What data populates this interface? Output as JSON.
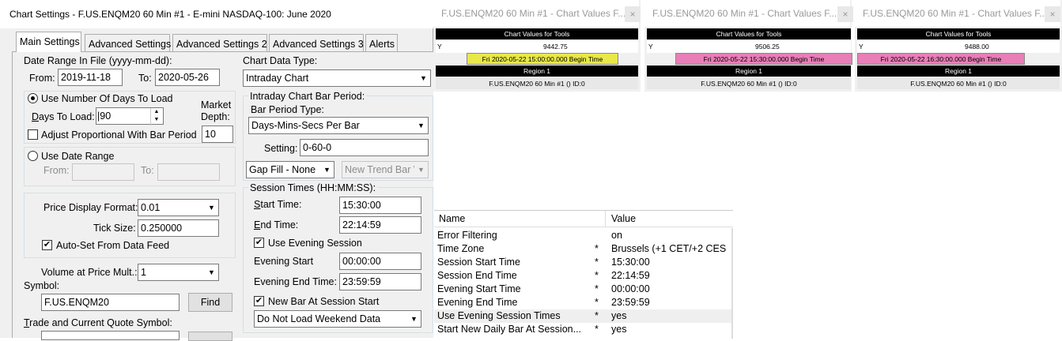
{
  "dialog": {
    "title": "Chart Settings - F.US.ENQM20  60 Min   #1 - E-mini NASDAQ-100: June 2020",
    "tabs": [
      "Main Settings",
      "Advanced Settings",
      "Advanced Settings 2",
      "Advanced Settings 3",
      "Alerts"
    ],
    "date_range_label": "Date Range In File (yyyy-mm-dd):",
    "from_label": "From:",
    "from_value": "2019-11-18",
    "to_label": "To:",
    "to_value": "2020-05-26",
    "use_days_label": "Use Number Of Days To Load",
    "days_to_load_label": "Days To Load:",
    "days_to_load_value": "90",
    "market_depth_label_1": "Market",
    "market_depth_label_2": "Depth:",
    "market_depth_value": "10",
    "adjust_label": "Adjust Proportional With Bar Period",
    "use_date_range_label": "Use Date Range",
    "dr_from_label": "From:",
    "dr_to_label": "To:",
    "price_format_label": "Price Display Format:",
    "price_format_value": "0.01",
    "tick_size_label": "Tick Size:",
    "tick_size_value": "0.250000",
    "auto_set_label": "Auto-Set From Data Feed",
    "volume_mult_label": "Volume at Price Mult.:",
    "volume_mult_value": "1",
    "symbol_label": "Symbol:",
    "symbol_value": "F.US.ENQM20",
    "find_label": "Find",
    "trade_quote_label": "Trade and Current Quote Symbol:",
    "chart_data_type_label": "Chart Data Type:",
    "chart_data_type_value": "Intraday Chart",
    "intraday_group_label": "Intraday Chart Bar Period:",
    "bar_period_type_label": "Bar Period Type:",
    "bar_period_type_value": "Days-Mins-Secs Per Bar",
    "setting_label": "Setting:",
    "setting_value": "0-60-0",
    "gap_fill_value": "Gap Fill - None",
    "new_trend_value": "New Trend Bar W",
    "session_group_label": "Session Times (HH:MM:SS):",
    "start_time_label": "Start Time:",
    "start_time_value": "15:30:00",
    "end_time_label": "End Time:",
    "end_time_value": "22:14:59",
    "use_evening_label": "Use Evening Session",
    "evening_start_label": "Evening Start",
    "evening_start_value": "00:00:00",
    "evening_end_label": "Evening End Time:",
    "evening_end_value": "23:59:59",
    "new_bar_label": "New Bar At Session Start",
    "weekend_value": "Do Not Load Weekend Data"
  },
  "chart_values_windows": [
    {
      "title": "F.US.ENQM20  60 Min   #1 - Chart Values F...",
      "header": "Chart Values for Tools",
      "y_label": "Y",
      "y_value": "9442.75",
      "time_text": "Fri 2020-05-22  15:00:00.000 Begin Time",
      "time_color": "#e8e84a",
      "region": "Region 1",
      "footer": "F.US.ENQM20  60 Min  #1 ()  ID:0"
    },
    {
      "title": "F.US.ENQM20  60 Min   #1 - Chart Values F...",
      "header": "Chart Values for Tools",
      "y_label": "Y",
      "y_value": "9506.25",
      "time_text": "Fri 2020-05-22  15:30:00.000 Begin Time",
      "time_color": "#e87fb8",
      "region": "Region 1",
      "footer": "F.US.ENQM20  60 Min  #1 ()  ID:0"
    },
    {
      "title": "F.US.ENQM20  60 Min   #1 - Chart Values F...",
      "header": "Chart Values for Tools",
      "y_label": "Y",
      "y_value": "9488.00",
      "time_text": "Fri 2020-05-22  16:30:00.000 Begin Time",
      "time_color": "#e87fb8",
      "region": "Region 1",
      "footer": "F.US.ENQM20  60 Min  #1 ()  ID:0"
    }
  ],
  "property_grid": {
    "col_name": "Name",
    "col_value": "Value",
    "rows": [
      {
        "name": "Error Filtering",
        "star": "",
        "value": "on"
      },
      {
        "name": "Time Zone",
        "star": "*",
        "value": "Brussels (+1 CET/+2 CES"
      },
      {
        "name": "Session Start Time",
        "star": "*",
        "value": "15:30:00"
      },
      {
        "name": "Session End Time",
        "star": "*",
        "value": "22:14:59"
      },
      {
        "name": "Evening Start Time",
        "star": "*",
        "value": "00:00:00"
      },
      {
        "name": "Evening End Time",
        "star": "*",
        "value": "23:59:59"
      },
      {
        "name": "Use Evening Session Times",
        "star": "*",
        "value": "yes"
      },
      {
        "name": "Start New Daily Bar At Session...",
        "star": "*",
        "value": "yes"
      }
    ]
  }
}
